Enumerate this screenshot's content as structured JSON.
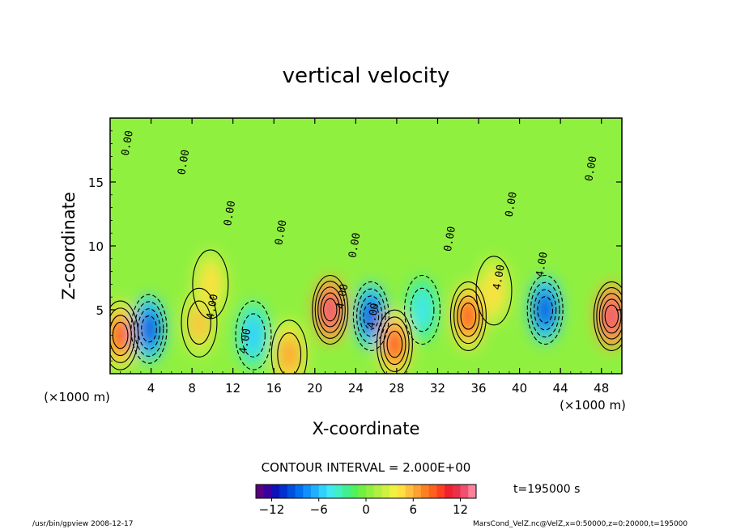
{
  "chart_data": {
    "type": "heatmap",
    "title": "vertical velocity",
    "xlabel": "X-coordinate",
    "ylabel": "Z-coordinate",
    "x_unit_left": "(×1000 m)",
    "x_unit_right": "(×1000 m)",
    "xlim": [
      0,
      50
    ],
    "ylim": [
      0,
      20
    ],
    "x_ticks": [
      "4",
      "8",
      "12",
      "16",
      "20",
      "24",
      "28",
      "32",
      "36",
      "40",
      "44",
      "48"
    ],
    "y_ticks": [
      "5",
      "10",
      "15"
    ],
    "contour_labels": [
      {
        "text": "0.00",
        "x": 2.0,
        "z": 18.0
      },
      {
        "text": "0.00",
        "x": 7.5,
        "z": 16.5
      },
      {
        "text": "0.00",
        "x": 12.0,
        "z": 12.5
      },
      {
        "text": "4.00",
        "x": 10.3,
        "z": 5.2
      },
      {
        "text": "4.00",
        "x": 13.5,
        "z": 2.5
      },
      {
        "text": "0.00",
        "x": 17.0,
        "z": 11.0
      },
      {
        "text": "4.00",
        "x": 23.0,
        "z": 6.0
      },
      {
        "text": "0.00",
        "x": 24.2,
        "z": 10.0
      },
      {
        "text": "4.00",
        "x": 26.0,
        "z": 4.5
      },
      {
        "text": "0.00",
        "x": 33.5,
        "z": 10.5
      },
      {
        "text": "4.00",
        "x": 38.3,
        "z": 7.5
      },
      {
        "text": "0.00",
        "x": 39.5,
        "z": 13.2
      },
      {
        "text": "4.00",
        "x": 42.5,
        "z": 8.5
      },
      {
        "text": "0.00",
        "x": 47.3,
        "z": 16.0
      }
    ],
    "cells": [
      {
        "x": 1,
        "z": 3,
        "w": 9
      },
      {
        "x": 3.8,
        "z": 3.5,
        "w": -10
      },
      {
        "x": 8.7,
        "z": 4,
        "w": 5
      },
      {
        "x": 9.8,
        "z": 7,
        "w": 4
      },
      {
        "x": 14,
        "z": 3,
        "w": -6
      },
      {
        "x": 17.5,
        "z": 1.5,
        "w": 6
      },
      {
        "x": 21.5,
        "z": 5,
        "w": 12
      },
      {
        "x": 25.5,
        "z": 4.5,
        "w": -10
      },
      {
        "x": 27.8,
        "z": 2.3,
        "w": 9
      },
      {
        "x": 30.5,
        "z": 5,
        "w": -5
      },
      {
        "x": 35,
        "z": 4.5,
        "w": 9
      },
      {
        "x": 37.5,
        "z": 6.5,
        "w": 4
      },
      {
        "x": 42.5,
        "z": 5,
        "w": -10
      },
      {
        "x": 49,
        "z": 4.5,
        "w": 12
      }
    ],
    "colorbar": {
      "min": -14,
      "max": 14,
      "step": 1,
      "tick_values": [
        -12,
        -6,
        0,
        6,
        12
      ],
      "tick_labels": [
        "−12",
        "−6",
        "0",
        "6",
        "12"
      ],
      "colors": [
        "#5a0080",
        "#3a00a0",
        "#1010b8",
        "#0030d0",
        "#0050e0",
        "#0070f0",
        "#1090ff",
        "#20b0ff",
        "#30d0ff",
        "#40e8f0",
        "#40f0c0",
        "#40f090",
        "#50f060",
        "#70f040",
        "#90f040",
        "#b0f040",
        "#d0f040",
        "#f0f040",
        "#ffe040",
        "#ffc040",
        "#ffa030",
        "#ff8020",
        "#ff6020",
        "#ff4020",
        "#f02030",
        "#e83048",
        "#f05070",
        "#ff8098"
      ]
    }
  },
  "contour_interval": "CONTOUR INTERVAL = 2.000E+00",
  "time_label": "t=195000 s",
  "footer_left": "/usr/bin/gpview  2008-12-17",
  "footer_right": "MarsCond_VelZ.nc@VelZ,x=0:50000,z=0:20000,t=195000"
}
